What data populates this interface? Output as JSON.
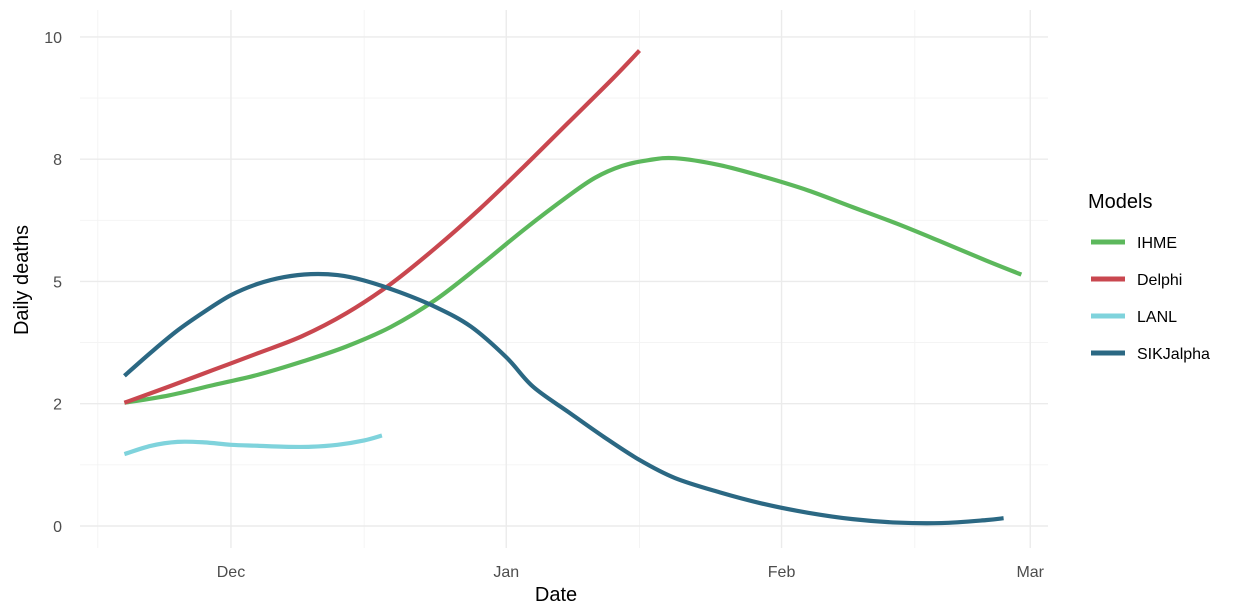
{
  "chart_data": {
    "type": "line",
    "xlabel": "Date",
    "ylabel": "Daily deaths",
    "x_ticks": [
      {
        "date": "2020-12-01",
        "label": "Dec"
      },
      {
        "date": "2021-01-01",
        "label": "Jan"
      },
      {
        "date": "2021-02-01",
        "label": "Feb"
      },
      {
        "date": "2021-03-01",
        "label": "Mar"
      }
    ],
    "x_minor_ticks": [
      "2020-11-16",
      "2020-12-16",
      "2021-01-16",
      "2021-02-16"
    ],
    "y_ticks": [
      {
        "value": 0,
        "label": "0"
      },
      {
        "value": 2.5,
        "label": "2"
      },
      {
        "value": 5,
        "label": "5"
      },
      {
        "value": 7.5,
        "label": "8"
      },
      {
        "value": 10,
        "label": "10"
      }
    ],
    "y_minor_ticks": [
      1.25,
      3.75,
      6.25,
      8.75
    ],
    "xlim": [
      "2020-11-14",
      "2021-03-03"
    ],
    "ylim": [
      -0.45,
      10.55
    ],
    "grid": true,
    "legend": {
      "title": "Models",
      "position": "right",
      "entries": [
        "IHME",
        "Delphi",
        "LANL",
        "SIKJalpha"
      ]
    },
    "series": [
      {
        "name": "IHME",
        "color": "#5cb85c",
        "points": [
          [
            "2020-11-19",
            2.52
          ],
          [
            "2020-11-24",
            2.67
          ],
          [
            "2020-11-29",
            2.88
          ],
          [
            "2020-12-04",
            3.09
          ],
          [
            "2020-12-09",
            3.36
          ],
          [
            "2020-12-14",
            3.67
          ],
          [
            "2020-12-19",
            4.07
          ],
          [
            "2020-12-24",
            4.62
          ],
          [
            "2020-12-29",
            5.32
          ],
          [
            "2021-01-03",
            6.06
          ],
          [
            "2021-01-08",
            6.75
          ],
          [
            "2021-01-11",
            7.12
          ],
          [
            "2021-01-14",
            7.36
          ],
          [
            "2021-01-17",
            7.48
          ],
          [
            "2021-01-20",
            7.52
          ],
          [
            "2021-01-25",
            7.38
          ],
          [
            "2021-01-30",
            7.14
          ],
          [
            "2021-02-04",
            6.86
          ],
          [
            "2021-02-09",
            6.52
          ],
          [
            "2021-02-14",
            6.18
          ],
          [
            "2021-02-19",
            5.81
          ],
          [
            "2021-02-24",
            5.43
          ],
          [
            "2021-02-28",
            5.14
          ]
        ]
      },
      {
        "name": "Delphi",
        "color": "#c9474f",
        "points": [
          [
            "2020-11-19",
            2.52
          ],
          [
            "2020-11-24",
            2.85
          ],
          [
            "2020-11-29",
            3.19
          ],
          [
            "2020-12-04",
            3.53
          ],
          [
            "2020-12-09",
            3.88
          ],
          [
            "2020-12-14",
            4.35
          ],
          [
            "2020-12-19",
            4.95
          ],
          [
            "2020-12-24",
            5.68
          ],
          [
            "2020-12-29",
            6.48
          ],
          [
            "2021-01-03",
            7.35
          ],
          [
            "2021-01-08",
            8.25
          ],
          [
            "2021-01-13",
            9.15
          ],
          [
            "2021-01-16",
            9.72
          ]
        ]
      },
      {
        "name": "LANL",
        "color": "#7fd3dc",
        "points": [
          [
            "2020-11-19",
            1.47
          ],
          [
            "2020-11-22",
            1.64
          ],
          [
            "2020-11-25",
            1.72
          ],
          [
            "2020-11-28",
            1.71
          ],
          [
            "2020-12-01",
            1.66
          ],
          [
            "2020-12-04",
            1.64
          ],
          [
            "2020-12-07",
            1.62
          ],
          [
            "2020-12-10",
            1.62
          ],
          [
            "2020-12-13",
            1.66
          ],
          [
            "2020-12-16",
            1.75
          ],
          [
            "2020-12-18",
            1.85
          ]
        ]
      },
      {
        "name": "SIKJalpha",
        "color": "#2b6883",
        "points": [
          [
            "2020-11-19",
            3.07
          ],
          [
            "2020-11-22",
            3.55
          ],
          [
            "2020-11-25",
            4.0
          ],
          [
            "2020-11-28",
            4.38
          ],
          [
            "2020-12-01",
            4.72
          ],
          [
            "2020-12-04",
            4.95
          ],
          [
            "2020-12-07",
            5.09
          ],
          [
            "2020-12-10",
            5.15
          ],
          [
            "2020-12-13",
            5.13
          ],
          [
            "2020-12-16",
            5.02
          ],
          [
            "2020-12-20",
            4.78
          ],
          [
            "2020-12-24",
            4.48
          ],
          [
            "2020-12-28",
            4.08
          ],
          [
            "2021-01-01",
            3.45
          ],
          [
            "2021-01-04",
            2.85
          ],
          [
            "2021-01-08",
            2.33
          ],
          [
            "2021-01-12",
            1.82
          ],
          [
            "2021-01-16",
            1.35
          ],
          [
            "2021-01-20",
            0.98
          ],
          [
            "2021-01-25",
            0.69
          ],
          [
            "2021-01-30",
            0.45
          ],
          [
            "2021-02-04",
            0.27
          ],
          [
            "2021-02-09",
            0.14
          ],
          [
            "2021-02-14",
            0.07
          ],
          [
            "2021-02-19",
            0.06
          ],
          [
            "2021-02-24",
            0.12
          ],
          [
            "2021-02-26",
            0.16
          ]
        ]
      }
    ]
  }
}
